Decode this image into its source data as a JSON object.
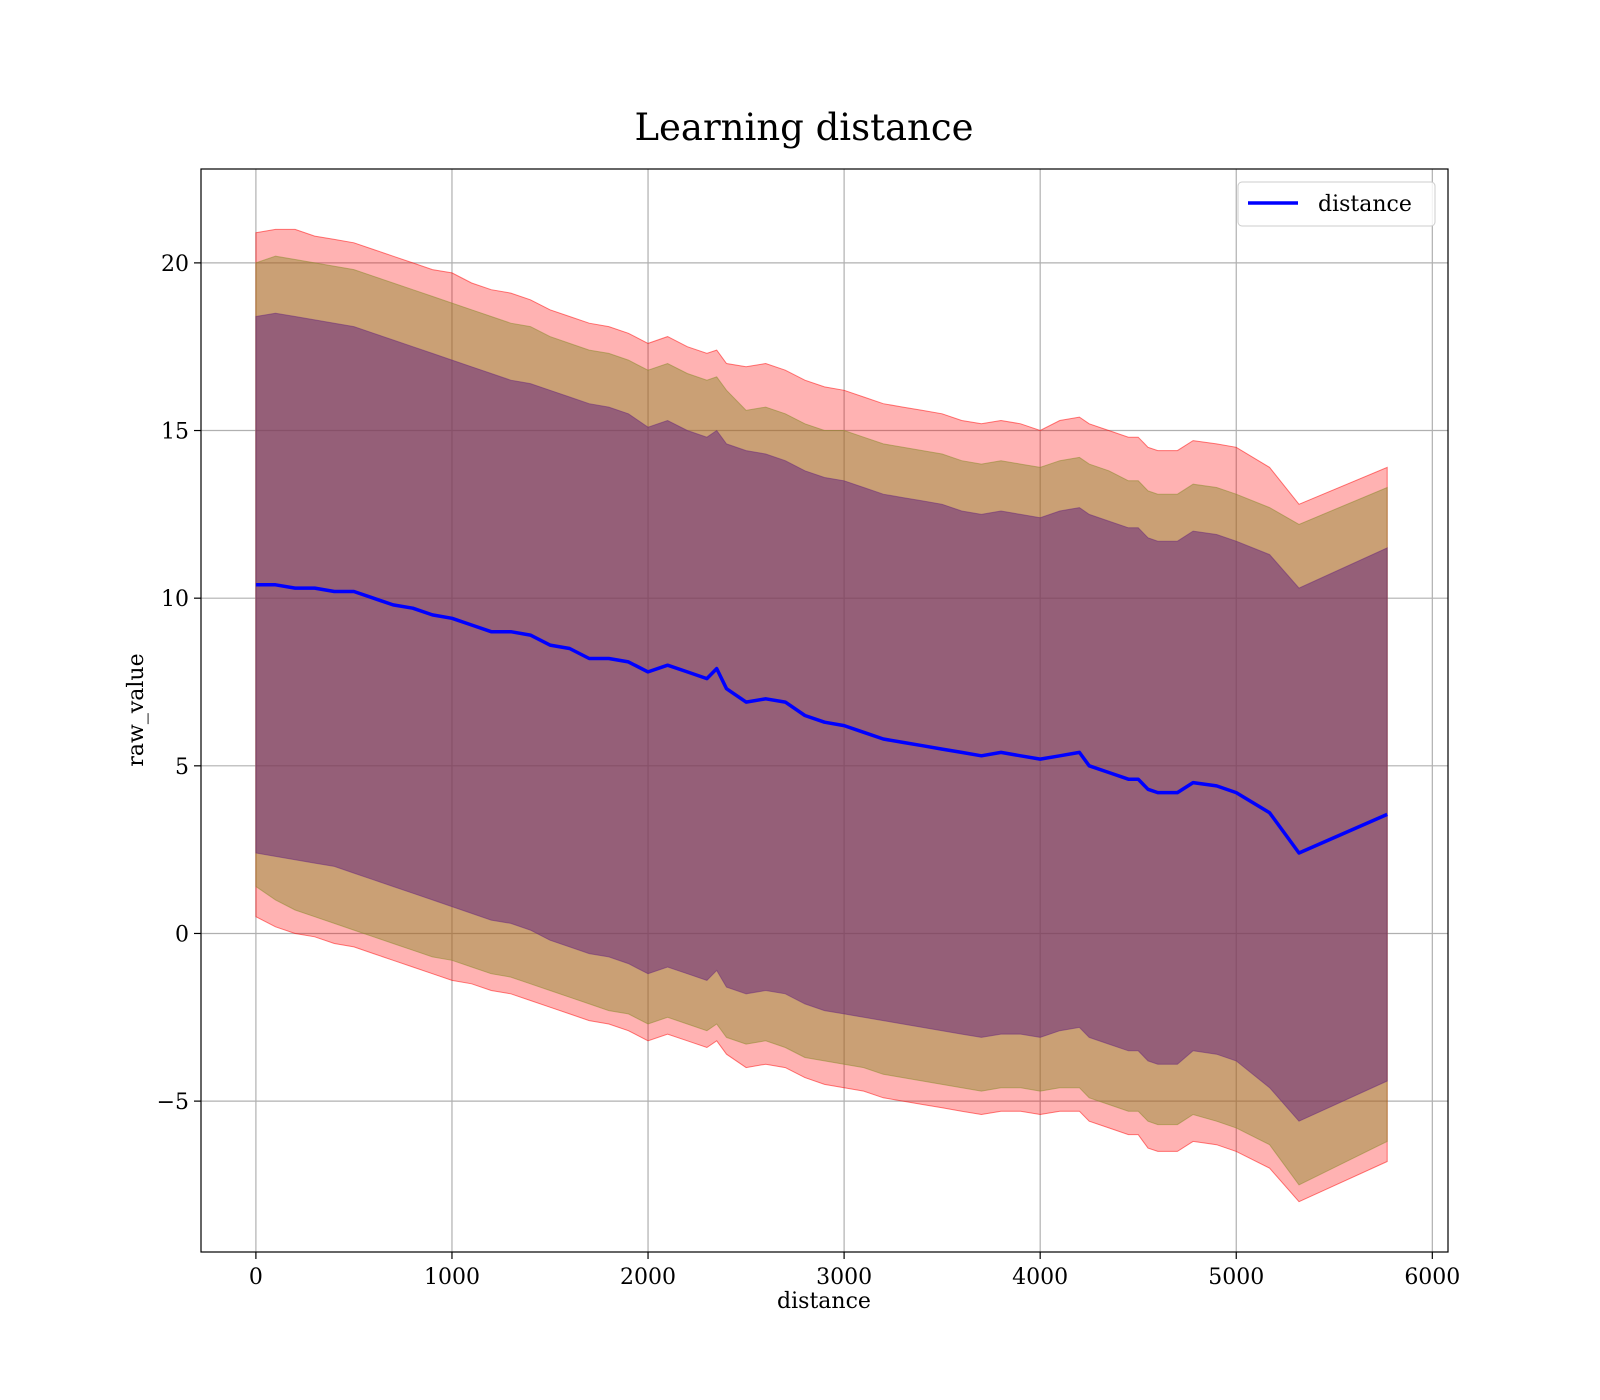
{
  "chart_data": {
    "type": "area",
    "title": "Learning distance",
    "xlabel": "distance",
    "ylabel": "raw_value",
    "xlim": [
      -280,
      6080
    ],
    "ylim": [
      -9.5,
      22.8
    ],
    "xticks": [
      0,
      1000,
      2000,
      3000,
      4000,
      5000,
      6000
    ],
    "xtick_labels": [
      "0",
      "1000",
      "2000",
      "3000",
      "4000",
      "5000",
      "6000"
    ],
    "yticks": [
      -5,
      0,
      5,
      10,
      15,
      20
    ],
    "ytick_labels": [
      "−5",
      "0",
      "5",
      "10",
      "15",
      "20"
    ],
    "grid": true,
    "legend": {
      "position": "top-right",
      "entries": [
        "distance"
      ]
    },
    "colors": {
      "line": "#0000ff",
      "band_outer": "#ff0000",
      "band_middle": "#8a8a2a",
      "band_inner": "#6a2a7a",
      "grid": "#b0b0b0"
    },
    "series": [
      {
        "name": "distance",
        "x": [
          0,
          100,
          200,
          300,
          400,
          500,
          600,
          700,
          800,
          900,
          1000,
          1100,
          1200,
          1300,
          1400,
          1500,
          1600,
          1700,
          1800,
          1900,
          2000,
          2100,
          2200,
          2300,
          2350,
          2400,
          2500,
          2600,
          2700,
          2800,
          2900,
          3000,
          3100,
          3200,
          3300,
          3400,
          3500,
          3600,
          3700,
          3800,
          3900,
          4000,
          4100,
          4200,
          4250,
          4350,
          4450,
          4500,
          4550,
          4600,
          4700,
          4780,
          4900,
          5000,
          5170,
          5320,
          5770
        ],
        "y": [
          10.4,
          10.4,
          10.3,
          10.3,
          10.2,
          10.2,
          10.0,
          9.8,
          9.7,
          9.5,
          9.4,
          9.2,
          9.0,
          9.0,
          8.9,
          8.6,
          8.5,
          8.2,
          8.2,
          8.1,
          7.8,
          8.0,
          7.8,
          7.6,
          7.9,
          7.3,
          6.9,
          7.0,
          6.9,
          6.5,
          6.3,
          6.2,
          6.0,
          5.8,
          5.7,
          5.6,
          5.5,
          5.4,
          5.3,
          5.4,
          5.3,
          5.2,
          5.3,
          5.4,
          5.0,
          4.8,
          4.6,
          4.6,
          4.3,
          4.2,
          4.2,
          4.5,
          4.4,
          4.2,
          3.6,
          2.4,
          3.55
        ]
      }
    ],
    "bands": [
      {
        "label": "outer",
        "lower": [
          0.5,
          0.2,
          0.0,
          -0.1,
          -0.3,
          -0.4,
          -0.6,
          -0.8,
          -1.0,
          -1.2,
          -1.4,
          -1.5,
          -1.7,
          -1.8,
          -2.0,
          -2.2,
          -2.4,
          -2.6,
          -2.7,
          -2.9,
          -3.2,
          -3.0,
          -3.2,
          -3.4,
          -3.2,
          -3.6,
          -4.0,
          -3.9,
          -4.0,
          -4.3,
          -4.5,
          -4.6,
          -4.7,
          -4.9,
          -5.0,
          -5.1,
          -5.2,
          -5.3,
          -5.4,
          -5.3,
          -5.3,
          -5.4,
          -5.3,
          -5.3,
          -5.6,
          -5.8,
          -6.0,
          -6.0,
          -6.4,
          -6.5,
          -6.5,
          -6.2,
          -6.3,
          -6.5,
          -7.0,
          -8.0,
          -6.8
        ],
        "upper": [
          20.9,
          21.0,
          21.0,
          20.8,
          20.7,
          20.6,
          20.4,
          20.2,
          20.0,
          19.8,
          19.7,
          19.4,
          19.2,
          19.1,
          18.9,
          18.6,
          18.4,
          18.2,
          18.1,
          17.9,
          17.6,
          17.8,
          17.5,
          17.3,
          17.4,
          17.0,
          16.9,
          17.0,
          16.8,
          16.5,
          16.3,
          16.2,
          16.0,
          15.8,
          15.7,
          15.6,
          15.5,
          15.3,
          15.2,
          15.3,
          15.2,
          15.0,
          15.3,
          15.4,
          15.2,
          15.0,
          14.8,
          14.8,
          14.5,
          14.4,
          14.4,
          14.7,
          14.6,
          14.5,
          13.9,
          12.8,
          13.9
        ]
      },
      {
        "label": "middle",
        "lower": [
          1.4,
          1.0,
          0.7,
          0.5,
          0.3,
          0.1,
          -0.1,
          -0.3,
          -0.5,
          -0.7,
          -0.8,
          -1.0,
          -1.2,
          -1.3,
          -1.5,
          -1.7,
          -1.9,
          -2.1,
          -2.3,
          -2.4,
          -2.7,
          -2.5,
          -2.7,
          -2.9,
          -2.7,
          -3.1,
          -3.3,
          -3.2,
          -3.4,
          -3.7,
          -3.8,
          -3.9,
          -4.0,
          -4.2,
          -4.3,
          -4.4,
          -4.5,
          -4.6,
          -4.7,
          -4.6,
          -4.6,
          -4.7,
          -4.6,
          -4.6,
          -4.9,
          -5.1,
          -5.3,
          -5.3,
          -5.6,
          -5.7,
          -5.7,
          -5.4,
          -5.6,
          -5.8,
          -6.3,
          -7.5,
          -6.2
        ],
        "upper": [
          20.0,
          20.2,
          20.1,
          20.0,
          19.9,
          19.8,
          19.6,
          19.4,
          19.2,
          19.0,
          18.8,
          18.6,
          18.4,
          18.2,
          18.1,
          17.8,
          17.6,
          17.4,
          17.3,
          17.1,
          16.8,
          17.0,
          16.7,
          16.5,
          16.6,
          16.2,
          15.6,
          15.7,
          15.5,
          15.2,
          15.0,
          15.0,
          14.8,
          14.6,
          14.5,
          14.4,
          14.3,
          14.1,
          14.0,
          14.1,
          14.0,
          13.9,
          14.1,
          14.2,
          14.0,
          13.8,
          13.5,
          13.5,
          13.2,
          13.1,
          13.1,
          13.4,
          13.3,
          13.1,
          12.7,
          12.2,
          13.3
        ]
      },
      {
        "label": "inner",
        "lower": [
          2.4,
          2.3,
          2.2,
          2.1,
          2.0,
          1.8,
          1.6,
          1.4,
          1.2,
          1.0,
          0.8,
          0.6,
          0.4,
          0.3,
          0.1,
          -0.2,
          -0.4,
          -0.6,
          -0.7,
          -0.9,
          -1.2,
          -1.0,
          -1.2,
          -1.4,
          -1.1,
          -1.6,
          -1.8,
          -1.7,
          -1.8,
          -2.1,
          -2.3,
          -2.4,
          -2.5,
          -2.6,
          -2.7,
          -2.8,
          -2.9,
          -3.0,
          -3.1,
          -3.0,
          -3.0,
          -3.1,
          -2.9,
          -2.8,
          -3.1,
          -3.3,
          -3.5,
          -3.5,
          -3.8,
          -3.9,
          -3.9,
          -3.5,
          -3.6,
          -3.8,
          -4.6,
          -5.6,
          -4.4
        ],
        "upper": [
          18.4,
          18.5,
          18.4,
          18.3,
          18.2,
          18.1,
          17.9,
          17.7,
          17.5,
          17.3,
          17.1,
          16.9,
          16.7,
          16.5,
          16.4,
          16.2,
          16.0,
          15.8,
          15.7,
          15.5,
          15.1,
          15.3,
          15.0,
          14.8,
          15.0,
          14.6,
          14.4,
          14.3,
          14.1,
          13.8,
          13.6,
          13.5,
          13.3,
          13.1,
          13.0,
          12.9,
          12.8,
          12.6,
          12.5,
          12.6,
          12.5,
          12.4,
          12.6,
          12.7,
          12.5,
          12.3,
          12.1,
          12.1,
          11.8,
          11.7,
          11.7,
          12.0,
          11.9,
          11.7,
          11.3,
          10.3,
          11.5
        ]
      }
    ]
  }
}
